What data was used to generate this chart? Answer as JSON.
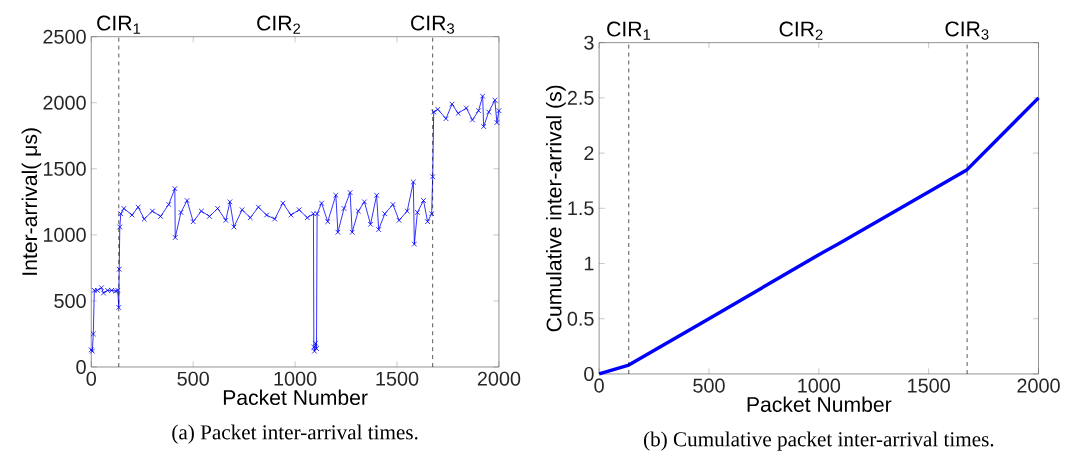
{
  "chart_data": [
    {
      "type": "line",
      "title": "(a) Packet inter-arrival times.",
      "xlabel": "Packet Number",
      "ylabel": "Inter-arrival( μs)",
      "marker": "cross",
      "xlim": [
        0,
        2000
      ],
      "ylim": [
        0,
        2500
      ],
      "xticks": [
        0,
        500,
        1000,
        1500,
        2000
      ],
      "yticks": [
        0,
        500,
        1000,
        1500,
        2000,
        2500
      ],
      "ref_lines": [
        {
          "axis": "x",
          "value": 135,
          "label": "CIR$_{1}$",
          "color": "#000000",
          "line_style": "dashed"
        },
        {
          "axis": "x",
          "value": 1675,
          "label": "CIR$_{3}$",
          "color": "#000000",
          "line_style": "dashed"
        }
      ],
      "annotations": [
        "CIR$_{2}$"
      ],
      "series": [
        {
          "color": "#0000ff",
          "x": [
            0,
            5,
            10,
            15,
            30,
            50,
            60,
            80,
            100,
            120,
            130,
            135,
            137,
            140,
            145,
            160,
            200,
            230,
            260,
            300,
            340,
            380,
            410,
            412,
            440,
            470,
            500,
            540,
            580,
            620,
            660,
            680,
            700,
            740,
            780,
            820,
            860,
            900,
            940,
            980,
            1020,
            1060,
            1090,
            1092,
            1095,
            1100,
            1105,
            1108,
            1130,
            1160,
            1200,
            1210,
            1240,
            1270,
            1280,
            1310,
            1340,
            1370,
            1400,
            1410,
            1440,
            1480,
            1510,
            1550,
            1580,
            1585,
            1600,
            1630,
            1650,
            1670,
            1675,
            1680,
            1700,
            1740,
            1770,
            1800,
            1840,
            1870,
            1900,
            1920,
            1925,
            1950,
            1980,
            1990,
            2000
          ],
          "values": [
            130,
            120,
            250,
            580,
            580,
            600,
            560,
            580,
            580,
            575,
            580,
            450,
            740,
            1060,
            1160,
            1200,
            1150,
            1210,
            1120,
            1180,
            1140,
            1230,
            1350,
            980,
            1170,
            1260,
            1100,
            1180,
            1140,
            1200,
            1110,
            1250,
            1060,
            1190,
            1130,
            1210,
            1150,
            1120,
            1240,
            1150,
            1190,
            1130,
            1160,
            150,
            120,
            180,
            140,
            1160,
            1240,
            1100,
            1300,
            1020,
            1200,
            1320,
            1020,
            1180,
            1250,
            1080,
            1300,
            1040,
            1160,
            1230,
            1110,
            1180,
            1400,
            930,
            1170,
            1260,
            1100,
            1160,
            1440,
            1930,
            1950,
            1880,
            1990,
            1920,
            1960,
            1870,
            1940,
            2050,
            1820,
            1930,
            2020,
            1850,
            1940
          ]
        }
      ]
    },
    {
      "type": "line",
      "title": "(b) Cumulative packet inter-arrival times.",
      "xlabel": "Packet Number",
      "ylabel": "Cumulative inter-arrival (s)",
      "xlim": [
        0,
        2000
      ],
      "ylim": [
        0,
        3
      ],
      "xticks": [
        0,
        500,
        1000,
        1500,
        2000
      ],
      "yticks": [
        0,
        0.5,
        1,
        1.5,
        2,
        2.5,
        3
      ],
      "ref_lines": [
        {
          "axis": "x",
          "value": 135,
          "label": "CIR$_{1}$",
          "color": "#000000",
          "line_style": "dashed"
        },
        {
          "axis": "x",
          "value": 1675,
          "label": "CIR$_{3}$",
          "color": "#000000",
          "line_style": "dashed"
        }
      ],
      "annotations": [
        "CIR$_{2}$"
      ],
      "series": [
        {
          "color": "#0000ff",
          "x": [
            0,
            135,
            500,
            1000,
            1100,
            1675,
            2000
          ],
          "values": [
            0,
            0.08,
            0.5,
            1.08,
            1.19,
            1.85,
            2.5
          ]
        }
      ]
    }
  ]
}
